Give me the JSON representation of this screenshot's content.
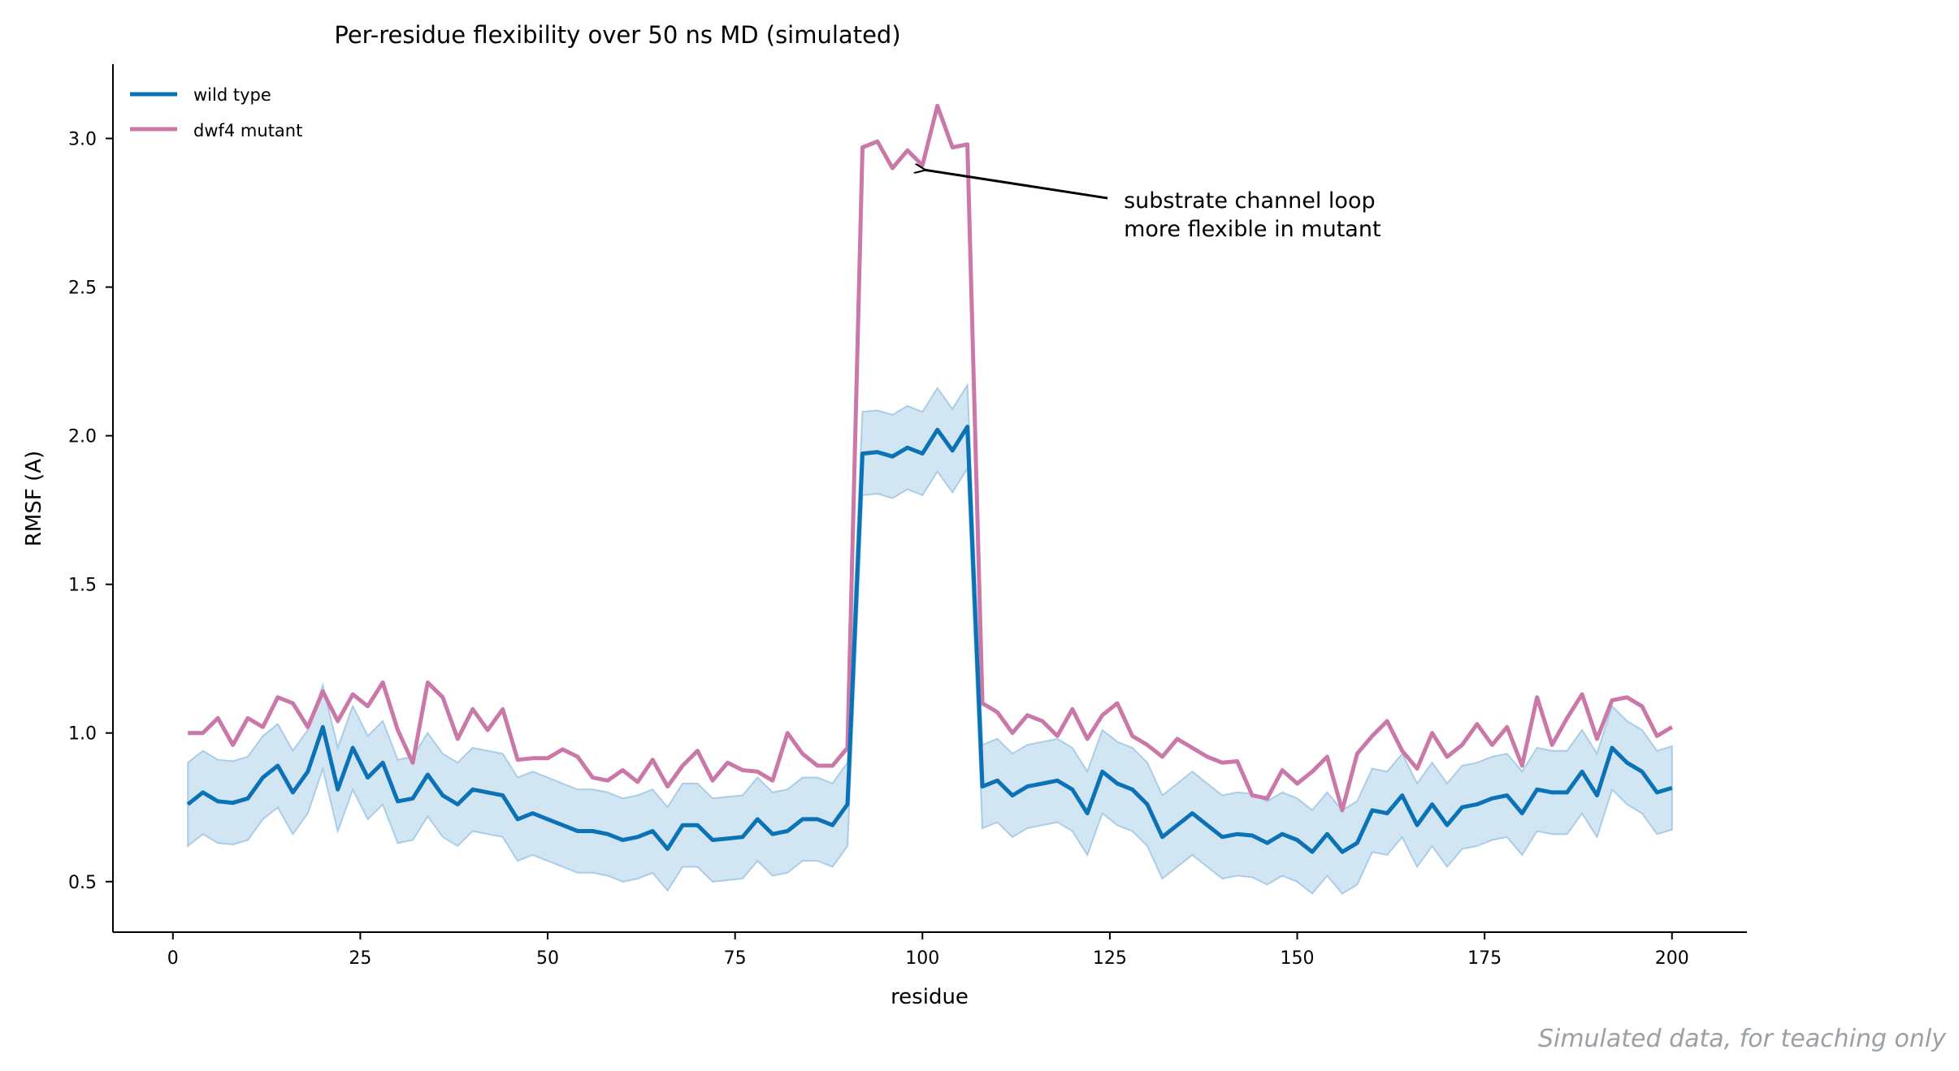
{
  "chart_data": {
    "type": "line",
    "title": "Per-residue flexibility over 50 ns MD (simulated)",
    "xlabel": "residue",
    "ylabel": "RMSF (A)",
    "xlim": [
      -8,
      210
    ],
    "ylim": [
      0.33,
      3.25
    ],
    "xticks": [
      0,
      25,
      50,
      75,
      100,
      125,
      150,
      175,
      200
    ],
    "xtick_labels": [
      "0",
      "25",
      "50",
      "75",
      "100",
      "125",
      "150",
      "175",
      "200"
    ],
    "yticks": [
      0.5,
      1.0,
      1.5,
      2.0,
      2.5,
      3.0
    ],
    "ytick_labels": [
      "0.5",
      "1.0",
      "1.5",
      "2.0",
      "2.5",
      "3.0"
    ],
    "grid": false,
    "legend_position": "top-left",
    "x": [
      2,
      4,
      6,
      8,
      10,
      12,
      14,
      16,
      18,
      20,
      22,
      24,
      26,
      28,
      30,
      32,
      34,
      36,
      38,
      40,
      42,
      44,
      46,
      48,
      50,
      52,
      54,
      56,
      58,
      60,
      62,
      64,
      66,
      68,
      70,
      72,
      74,
      76,
      78,
      80,
      82,
      84,
      86,
      88,
      90,
      92,
      94,
      96,
      98,
      100,
      102,
      104,
      106,
      108,
      110,
      112,
      114,
      116,
      118,
      120,
      122,
      124,
      126,
      128,
      130,
      132,
      134,
      136,
      138,
      140,
      142,
      144,
      146,
      148,
      150,
      152,
      154,
      156,
      158,
      160,
      162,
      164,
      166,
      168,
      170,
      172,
      174,
      176,
      178,
      180,
      182,
      184,
      186,
      188,
      190,
      192,
      194,
      196,
      198,
      200
    ],
    "series": [
      {
        "name": "wild type",
        "color": "#0b72b5",
        "values": [
          0.76,
          0.8,
          0.77,
          0.765,
          0.78,
          0.85,
          0.89,
          0.8,
          0.87,
          1.02,
          0.81,
          0.95,
          0.85,
          0.9,
          0.77,
          0.78,
          0.86,
          0.79,
          0.76,
          0.81,
          0.8,
          0.79,
          0.71,
          0.73,
          0.71,
          0.69,
          0.67,
          0.67,
          0.66,
          0.64,
          0.65,
          0.67,
          0.61,
          0.69,
          0.69,
          0.64,
          0.645,
          0.65,
          0.71,
          0.66,
          0.67,
          0.71,
          0.71,
          0.69,
          0.76,
          1.94,
          1.945,
          1.93,
          1.96,
          1.94,
          2.02,
          1.95,
          2.03,
          0.82,
          0.84,
          0.79,
          0.82,
          0.83,
          0.84,
          0.81,
          0.73,
          0.87,
          0.83,
          0.81,
          0.76,
          0.65,
          0.69,
          0.73,
          0.69,
          0.65,
          0.66,
          0.655,
          0.63,
          0.66,
          0.64,
          0.6,
          0.66,
          0.6,
          0.63,
          0.74,
          0.73,
          0.79,
          0.69,
          0.76,
          0.69,
          0.75,
          0.76,
          0.78,
          0.79,
          0.73,
          0.81,
          0.8,
          0.8,
          0.87,
          0.79,
          0.95,
          0.9,
          0.87,
          0.8,
          0.815
        ],
        "band_lower": [
          0.62,
          0.66,
          0.63,
          0.625,
          0.64,
          0.71,
          0.75,
          0.66,
          0.73,
          0.88,
          0.67,
          0.81,
          0.71,
          0.76,
          0.63,
          0.64,
          0.72,
          0.65,
          0.62,
          0.67,
          0.66,
          0.65,
          0.57,
          0.59,
          0.57,
          0.55,
          0.53,
          0.53,
          0.52,
          0.5,
          0.51,
          0.53,
          0.47,
          0.55,
          0.55,
          0.5,
          0.505,
          0.51,
          0.57,
          0.52,
          0.53,
          0.57,
          0.57,
          0.55,
          0.62,
          1.8,
          1.805,
          1.79,
          1.82,
          1.8,
          1.88,
          1.81,
          1.89,
          0.68,
          0.7,
          0.65,
          0.68,
          0.69,
          0.7,
          0.67,
          0.59,
          0.73,
          0.69,
          0.67,
          0.62,
          0.51,
          0.55,
          0.59,
          0.55,
          0.51,
          0.52,
          0.515,
          0.49,
          0.52,
          0.5,
          0.46,
          0.52,
          0.46,
          0.49,
          0.6,
          0.59,
          0.65,
          0.55,
          0.62,
          0.55,
          0.61,
          0.62,
          0.64,
          0.65,
          0.59,
          0.67,
          0.66,
          0.66,
          0.73,
          0.65,
          0.81,
          0.76,
          0.73,
          0.66,
          0.675
        ],
        "band_upper": [
          0.9,
          0.94,
          0.91,
          0.905,
          0.92,
          0.99,
          1.03,
          0.94,
          1.01,
          1.16,
          0.95,
          1.09,
          0.99,
          1.04,
          0.91,
          0.92,
          1.0,
          0.93,
          0.9,
          0.95,
          0.94,
          0.93,
          0.85,
          0.87,
          0.85,
          0.83,
          0.81,
          0.81,
          0.8,
          0.78,
          0.79,
          0.81,
          0.75,
          0.83,
          0.83,
          0.78,
          0.785,
          0.79,
          0.85,
          0.8,
          0.81,
          0.85,
          0.85,
          0.83,
          0.9,
          2.08,
          2.085,
          2.07,
          2.1,
          2.08,
          2.16,
          2.09,
          2.17,
          0.96,
          0.98,
          0.93,
          0.96,
          0.97,
          0.98,
          0.95,
          0.87,
          1.01,
          0.97,
          0.95,
          0.9,
          0.79,
          0.83,
          0.87,
          0.83,
          0.79,
          0.8,
          0.795,
          0.77,
          0.8,
          0.78,
          0.74,
          0.8,
          0.74,
          0.77,
          0.88,
          0.87,
          0.93,
          0.83,
          0.9,
          0.83,
          0.89,
          0.9,
          0.92,
          0.93,
          0.87,
          0.95,
          0.94,
          0.94,
          1.01,
          0.93,
          1.09,
          1.04,
          1.01,
          0.94,
          0.955
        ]
      },
      {
        "name": "dwf4 mutant",
        "color": "#c978a8",
        "values": [
          1.0,
          1.0,
          1.05,
          0.96,
          1.05,
          1.02,
          1.12,
          1.1,
          1.02,
          1.14,
          1.04,
          1.13,
          1.09,
          1.17,
          1.01,
          0.9,
          1.17,
          1.12,
          0.98,
          1.08,
          1.01,
          1.08,
          0.91,
          0.915,
          0.915,
          0.945,
          0.92,
          0.85,
          0.84,
          0.875,
          0.835,
          0.91,
          0.82,
          0.89,
          0.94,
          0.84,
          0.9,
          0.875,
          0.87,
          0.84,
          1.0,
          0.93,
          0.89,
          0.89,
          0.95,
          2.97,
          2.99,
          2.9,
          2.96,
          2.91,
          3.11,
          2.97,
          2.98,
          1.1,
          1.07,
          1.0,
          1.06,
          1.04,
          0.99,
          1.08,
          0.98,
          1.06,
          1.1,
          0.99,
          0.96,
          0.92,
          0.98,
          0.95,
          0.92,
          0.9,
          0.905,
          0.79,
          0.78,
          0.875,
          0.83,
          0.87,
          0.92,
          0.74,
          0.93,
          0.99,
          1.04,
          0.94,
          0.88,
          1.0,
          0.92,
          0.96,
          1.03,
          0.96,
          1.02,
          0.89,
          1.12,
          0.96,
          1.05,
          1.13,
          0.98,
          1.11,
          1.12,
          1.09,
          0.99,
          1.02
        ]
      }
    ],
    "annotations": [
      {
        "text_lines": [
          "substrate channel loop",
          "more flexible in mutant"
        ],
        "points_to": {
          "x": 100,
          "y": 2.9
        },
        "text_at": {
          "x": 126,
          "y": 2.75
        }
      }
    ],
    "footer_note": "Simulated data, for teaching only"
  }
}
